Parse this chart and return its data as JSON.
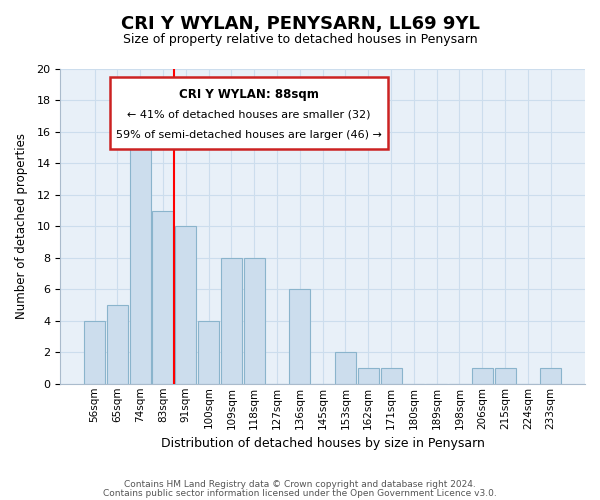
{
  "title": "CRI Y WYLAN, PENYSARN, LL69 9YL",
  "subtitle": "Size of property relative to detached houses in Penysarn",
  "xlabel": "Distribution of detached houses by size in Penysarn",
  "ylabel": "Number of detached properties",
  "footer_line1": "Contains HM Land Registry data © Crown copyright and database right 2024.",
  "footer_line2": "Contains public sector information licensed under the Open Government Licence v3.0.",
  "categories": [
    "56sqm",
    "65sqm",
    "74sqm",
    "83sqm",
    "91sqm",
    "100sqm",
    "109sqm",
    "118sqm",
    "127sqm",
    "136sqm",
    "145sqm",
    "153sqm",
    "162sqm",
    "171sqm",
    "180sqm",
    "189sqm",
    "198sqm",
    "206sqm",
    "215sqm",
    "224sqm",
    "233sqm"
  ],
  "values": [
    4,
    5,
    16,
    11,
    10,
    4,
    8,
    8,
    0,
    6,
    0,
    2,
    1,
    1,
    0,
    0,
    0,
    1,
    1,
    0,
    1
  ],
  "bar_color": "#ccdded",
  "bar_edge_color": "#8ab4cc",
  "red_line_index": 4,
  "ylim": [
    0,
    20
  ],
  "yticks": [
    0,
    2,
    4,
    6,
    8,
    10,
    12,
    14,
    16,
    18,
    20
  ],
  "annotation_title": "CRI Y WYLAN: 88sqm",
  "annotation_line1": "← 41% of detached houses are smaller (32)",
  "annotation_line2": "59% of semi-detached houses are larger (46) →",
  "grid_color": "#ccdded",
  "background_color": "#e8f0f8"
}
